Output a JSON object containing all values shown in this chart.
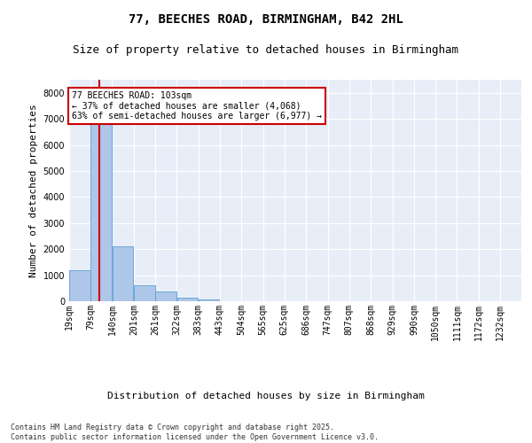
{
  "title_line1": "77, BEECHES ROAD, BIRMINGHAM, B42 2HL",
  "title_line2": "Size of property relative to detached houses in Birmingham",
  "xlabel": "Distribution of detached houses by size in Birmingham",
  "ylabel": "Number of detached properties",
  "bins": [
    "19sqm",
    "79sqm",
    "140sqm",
    "201sqm",
    "261sqm",
    "322sqm",
    "383sqm",
    "443sqm",
    "504sqm",
    "565sqm",
    "625sqm",
    "686sqm",
    "747sqm",
    "807sqm",
    "868sqm",
    "929sqm",
    "990sqm",
    "1050sqm",
    "1111sqm",
    "1172sqm",
    "1232sqm"
  ],
  "bin_edges": [
    19,
    79,
    140,
    201,
    261,
    322,
    383,
    443,
    504,
    565,
    625,
    686,
    747,
    807,
    868,
    929,
    990,
    1050,
    1111,
    1172,
    1232
  ],
  "bar_values": [
    1200,
    6800,
    2100,
    600,
    380,
    120,
    60,
    10,
    0,
    0,
    0,
    0,
    0,
    0,
    0,
    0,
    0,
    0,
    0,
    0
  ],
  "bar_color": "#aec6e8",
  "bar_edge_color": "#5a9fd4",
  "property_size": 103,
  "property_line_color": "#cc0000",
  "annotation_text": "77 BEECHES ROAD: 103sqm\n← 37% of detached houses are smaller (4,068)\n63% of semi-detached houses are larger (6,977) →",
  "annotation_box_color": "#cc0000",
  "ylim": [
    0,
    8500
  ],
  "yticks": [
    0,
    1000,
    2000,
    3000,
    4000,
    5000,
    6000,
    7000,
    8000
  ],
  "background_color": "#e8eef8",
  "footer_text": "Contains HM Land Registry data © Crown copyright and database right 2025.\nContains public sector information licensed under the Open Government Licence v3.0.",
  "title_fontsize": 10,
  "subtitle_fontsize": 9,
  "axis_label_fontsize": 8,
  "tick_fontsize": 7,
  "footer_fontsize": 6
}
